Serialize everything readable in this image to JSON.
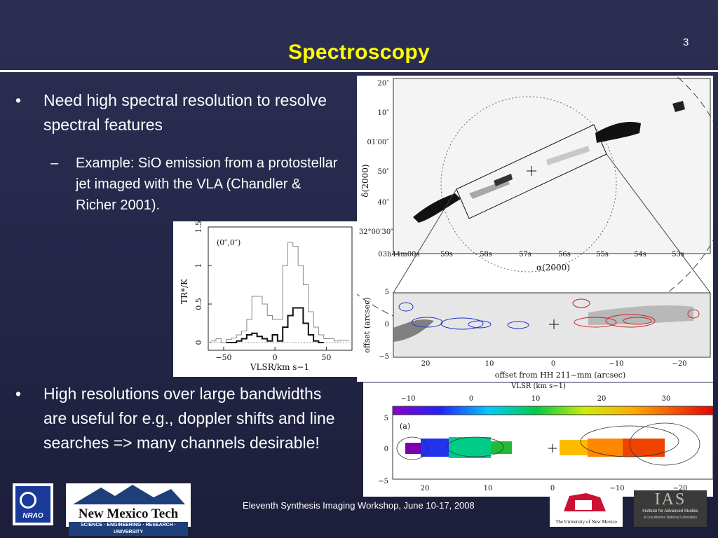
{
  "slide": {
    "title": "Spectroscopy",
    "number": "3",
    "footer": "Eleventh Synthesis Imaging Workshop, June 10-17, 2008"
  },
  "bullets": [
    {
      "marker": "•",
      "text": "Need high spectral resolution to resolve spectral features"
    },
    {
      "marker": "•",
      "text": "High resolutions over large bandwidths are useful for e.g., doppler shifts and line searches => many channels desirable!"
    }
  ],
  "sub_bullets": [
    {
      "marker": "–",
      "text": "Example: SiO emission from a protostellar jet imaged with the VLA (Chandler & Richer 2001)."
    }
  ],
  "sky_map": {
    "ylabel": "δ(2000)",
    "xlabel": "α(2000)",
    "y_ticks": [
      "20″",
      "10″",
      "01′00″",
      "50″",
      "40″",
      "32°00′30″"
    ],
    "x_ticks": [
      "03h44m00s",
      "59s",
      "58s",
      "57s",
      "56s",
      "55s",
      "54s",
      "53s"
    ]
  },
  "channel_map": {
    "ylabel": "offset (arcsec)",
    "xlabel": "offset from HH 211−mm (arcsec)",
    "y_ticks": [
      "5",
      "0",
      "−5"
    ],
    "x_ticks": [
      "20",
      "10",
      "0",
      "−10",
      "−20"
    ]
  },
  "velocity_map": {
    "top_label": "VLSR (km s−1)",
    "color_ticks": [
      "−10",
      "0",
      "10",
      "20",
      "30"
    ],
    "y_ticks": [
      "5",
      "0",
      "−5"
    ],
    "x_ticks": [
      "20",
      "10",
      "0",
      "−10",
      "−20"
    ],
    "panel_label": "(a)"
  },
  "chart_data": {
    "type": "line",
    "title": "",
    "annotation": "(0″,0″)",
    "xlabel": "VLSR/km s−1",
    "ylabel": "TR*/K",
    "xlim": [
      -65,
      75
    ],
    "ylim": [
      -0.1,
      1.5
    ],
    "x_ticks": [
      "−50",
      "0",
      "50"
    ],
    "y_ticks": [
      "0",
      "0.5",
      "1",
      "1.5"
    ],
    "x": [
      -60,
      -55,
      -50,
      -45,
      -40,
      -35,
      -30,
      -25,
      -20,
      -15,
      -10,
      -5,
      0,
      5,
      10,
      15,
      20,
      25,
      30,
      35,
      40,
      45,
      50,
      55,
      60,
      65,
      70
    ],
    "series": [
      {
        "values": [
          0.02,
          0.05,
          0.0,
          0.04,
          0.06,
          0.1,
          0.15,
          0.3,
          0.6,
          0.6,
          0.5,
          0.35,
          0.3,
          0.3,
          1.0,
          1.3,
          1.25,
          1.0,
          0.75,
          0.4,
          0.2,
          0.1,
          0.05,
          0.05,
          0.02,
          0.03,
          0.03
        ]
      },
      {
        "values": [
          null,
          null,
          null,
          0.0,
          0.0,
          0.02,
          0.05,
          0.1,
          0.12,
          0.08,
          0.05,
          0.02,
          0.1,
          0.02,
          0.2,
          0.35,
          0.45,
          0.45,
          0.25,
          0.1,
          0.02,
          0.0,
          null,
          null,
          null,
          null,
          null
        ]
      }
    ]
  },
  "logos": {
    "nrao": "NRAO",
    "nmt_name": "New Mexico Tech",
    "nmt_tagline": "SCIENCE · ENGINEERING · RESEARCH · UNIVERSITY",
    "unm": "The University of New Mexico",
    "ias_mark": "IAS",
    "ias_line1": "Institute for Advanced Studies",
    "ias_line2": "at Los Alamos National Laboratory"
  }
}
